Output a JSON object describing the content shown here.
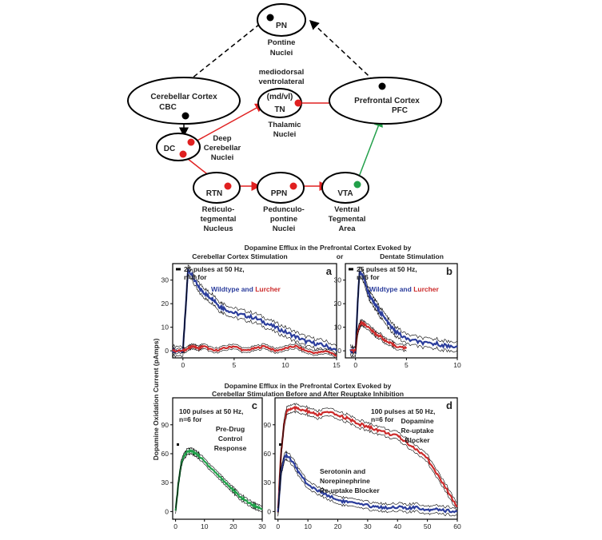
{
  "diagram": {
    "nodes": [
      {
        "id": "pn",
        "label": "PN",
        "caption": [
          "Pontine",
          "Nuclei"
        ]
      },
      {
        "id": "cbc",
        "label": [
          "Cerebellar Cortex",
          "CBC"
        ],
        "caption": []
      },
      {
        "id": "tn",
        "label": [
          "(md/vl)",
          "TN"
        ],
        "caption_above": [
          "mediodorsal",
          "ventrolateral"
        ],
        "caption": [
          "Thalamic",
          "Nuclei"
        ]
      },
      {
        "id": "pfc",
        "label": [
          "Prefrontal Cortex",
          "PFC"
        ],
        "caption": []
      },
      {
        "id": "dc",
        "label": "DC",
        "caption": [
          "Deep",
          "Cerebellar",
          "Nuclei"
        ]
      },
      {
        "id": "rtn",
        "label": "RTN",
        "caption": [
          "Reticulo-",
          "tegmental",
          "Nucleus"
        ]
      },
      {
        "id": "ppn",
        "label": "PPN",
        "caption": [
          "Pedunculo-",
          "pontine",
          "Nuclei"
        ]
      },
      {
        "id": "vta",
        "label": "VTA",
        "caption": [
          "Ventral",
          "Tegmental",
          "Area"
        ]
      }
    ],
    "edges": [
      {
        "from": "pn",
        "to": "cbc",
        "style": "dashed",
        "color": "#000000"
      },
      {
        "from": "pfc",
        "to": "pn",
        "style": "dashed",
        "color": "#000000"
      },
      {
        "from": "cbc",
        "to": "dc",
        "style": "solid",
        "color": "#000000"
      },
      {
        "from": "dc",
        "to": "tn",
        "style": "solid",
        "color": "#e02020"
      },
      {
        "from": "tn",
        "to": "pfc",
        "style": "solid",
        "color": "#e02020"
      },
      {
        "from": "dc",
        "to": "rtn",
        "style": "solid",
        "color": "#e02020"
      },
      {
        "from": "rtn",
        "to": "ppn",
        "style": "solid",
        "color": "#e02020"
      },
      {
        "from": "ppn",
        "to": "vta",
        "style": "solid",
        "color": "#e02020"
      },
      {
        "from": "vta",
        "to": "pfc",
        "style": "solid",
        "color": "#22a04a"
      }
    ]
  },
  "figure": {
    "title_top": [
      "Dopamine Efflux in the Prefrontal Cortex Evoked by"
    ],
    "title_top_left": "Cerebellar Cortex Stimulation",
    "title_top_or": "or",
    "title_top_right": "Dentate Stimulation",
    "title_bottom": [
      "Dopamine Efflux in the Prefrontal Cortex Evoked by",
      "Cerebellar Stimulation Before and After Reuptake Inhibition"
    ],
    "ylabel": "Dopamine Oxidation Current (pAmps)"
  },
  "colors": {
    "wildtype": "#2b3d9c",
    "lurcher": "#cc2a2a",
    "predrug": "#21a04a",
    "envelope": "#000000"
  },
  "chart_data": [
    {
      "panel": "a",
      "type": "line",
      "xlim": [
        -1,
        15
      ],
      "ylim": [
        -3,
        37
      ],
      "xticks": [
        0,
        5,
        10,
        15
      ],
      "yticks": [
        0,
        10,
        20,
        30
      ],
      "annotation": [
        "25 pulses at 50 Hz,",
        "n=6 for"
      ],
      "legend": [
        {
          "text": "Wildtype",
          "color": "#2b3d9c"
        },
        {
          "text": " and ",
          "color": "#2b3d9c"
        },
        {
          "text": "Lurcher",
          "color": "#cc2a2a"
        }
      ],
      "series": [
        {
          "name": "Wildtype",
          "color": "#2b3d9c",
          "band": 2,
          "x": [
            -1,
            0,
            0.3,
            0.5,
            1,
            1.5,
            2,
            2.5,
            3,
            3.5,
            4,
            5,
            6,
            7,
            8,
            9,
            10,
            11,
            12,
            13,
            14,
            15
          ],
          "y": [
            0,
            0,
            20,
            35,
            31,
            27,
            25,
            23,
            22,
            19,
            18,
            16,
            15,
            14,
            12,
            10,
            8,
            6,
            4,
            3,
            2,
            0
          ]
        },
        {
          "name": "Lurcher",
          "color": "#cc2a2a",
          "band": 1,
          "x": [
            -1,
            0,
            0.5,
            1,
            1.5,
            2,
            3,
            4,
            5,
            6,
            7,
            8,
            9,
            10,
            11,
            12,
            13,
            14,
            15
          ],
          "y": [
            0,
            0,
            1,
            2,
            1,
            2,
            0,
            1,
            2,
            0,
            1,
            2,
            0,
            1,
            2,
            0,
            -1,
            0,
            -2
          ]
        }
      ]
    },
    {
      "panel": "b",
      "type": "line",
      "xlim": [
        -1,
        10
      ],
      "ylim": [
        -3,
        37
      ],
      "xticks": [
        0,
        5,
        10
      ],
      "yticks": [
        0,
        10,
        20,
        30
      ],
      "annotation": [
        "25 pulses at 50 Hz,",
        "n=6 for"
      ],
      "legend": [
        {
          "text": "Wildtype",
          "color": "#2b3d9c"
        },
        {
          "text": " and ",
          "color": "#2b3d9c"
        },
        {
          "text": "Lurcher",
          "color": "#cc2a2a"
        }
      ],
      "series": [
        {
          "name": "Wildtype",
          "color": "#2b3d9c",
          "band": 2,
          "x": [
            -0.5,
            0,
            0.2,
            0.4,
            0.8,
            1.2,
            1.6,
            2,
            2.5,
            3,
            3.5,
            4,
            5,
            6,
            7,
            8,
            9,
            10
          ],
          "y": [
            0,
            0,
            20,
            34,
            31,
            25,
            22,
            19,
            16,
            13,
            10,
            8,
            5,
            4,
            3,
            3,
            2,
            2
          ]
        },
        {
          "name": "Lurcher",
          "color": "#cc2a2a",
          "band": 1.2,
          "x": [
            -0.5,
            0,
            0.2,
            0.5,
            1,
            1.5,
            2,
            2.5,
            3,
            3.5,
            4,
            5
          ],
          "y": [
            0,
            0,
            8,
            12,
            11,
            9,
            7,
            6,
            4,
            3,
            2,
            1
          ]
        }
      ]
    },
    {
      "panel": "c",
      "type": "line",
      "xlim": [
        -1,
        30
      ],
      "ylim": [
        -8,
        118
      ],
      "xticks": [
        0,
        10,
        20,
        30
      ],
      "yticks": [
        0,
        30,
        60,
        90
      ],
      "annotation": [
        "100 pulses at 50 Hz,",
        "n=6 for"
      ],
      "legend": [
        {
          "text": "Pre-Drug",
          "color": "#21a04a"
        },
        {
          "text": "Control",
          "color": "#21a04a"
        },
        {
          "text": "Response",
          "color": "#21a04a"
        }
      ],
      "series": [
        {
          "name": "Pre-Drug Control Response",
          "color": "#21a04a",
          "band": 3,
          "x": [
            0,
            1,
            2,
            3,
            4,
            5,
            6,
            7,
            8,
            10,
            12,
            14,
            16,
            18,
            20,
            22,
            24,
            26,
            28,
            30
          ],
          "y": [
            0,
            30,
            50,
            58,
            62,
            63,
            62,
            60,
            58,
            52,
            46,
            40,
            34,
            28,
            22,
            16,
            12,
            8,
            5,
            3
          ]
        }
      ]
    },
    {
      "panel": "d",
      "type": "line",
      "xlim": [
        -1,
        60
      ],
      "ylim": [
        -8,
        118
      ],
      "xticks": [
        0,
        10,
        20,
        30,
        40,
        50,
        60
      ],
      "yticks": [
        0,
        30,
        60,
        90
      ],
      "annotation": [
        "100 pulses at 50 Hz,",
        "n=6 for"
      ],
      "legend_top": [
        {
          "text": "Dopamine",
          "color": "#cc2a2a"
        },
        {
          "text": "Re-uptake",
          "color": "#cc2a2a"
        },
        {
          "text": "Blocker",
          "color": "#cc2a2a"
        }
      ],
      "legend_bottom": [
        {
          "text": "Serotonin and",
          "color": "#2b3d9c"
        },
        {
          "text": "Norepinephrine",
          "color": "#2b3d9c"
        },
        {
          "text": "Re-uptake Blocker",
          "color": "#2b3d9c"
        }
      ],
      "series": [
        {
          "name": "Dopamine Re-uptake Blocker",
          "color": "#cc2a2a",
          "band": 4,
          "x": [
            0,
            1,
            2,
            3,
            5,
            7,
            10,
            13,
            16,
            20,
            23,
            26,
            30,
            33,
            36,
            40,
            43,
            46,
            50,
            53,
            56,
            60
          ],
          "y": [
            0,
            60,
            90,
            105,
            108,
            106,
            104,
            100,
            103,
            100,
            97,
            92,
            88,
            85,
            82,
            78,
            72,
            65,
            55,
            40,
            25,
            5
          ]
        },
        {
          "name": "Serotonin and Norepinephrine Re-uptake Blocker",
          "color": "#2b3d9c",
          "band": 4,
          "x": [
            0,
            1,
            2,
            3,
            5,
            7,
            10,
            13,
            16,
            20,
            23,
            26,
            30,
            33,
            36,
            40,
            43,
            46,
            50,
            53,
            56,
            60
          ],
          "y": [
            0,
            40,
            55,
            58,
            52,
            40,
            28,
            22,
            18,
            12,
            10,
            8,
            6,
            5,
            4,
            5,
            3,
            4,
            2,
            3,
            1,
            0
          ]
        }
      ]
    }
  ]
}
